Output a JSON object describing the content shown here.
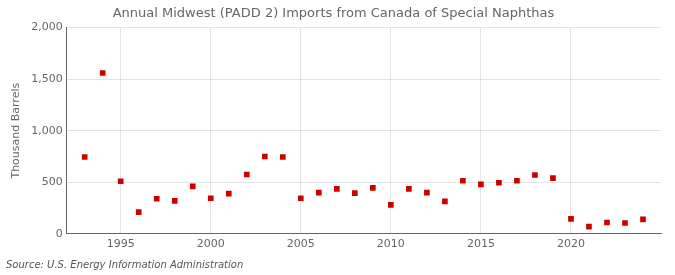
{
  "chart_data": {
    "type": "scatter",
    "title": "Annual Midwest (PADD 2) Imports from Canada of Special Naphthas",
    "ylabel": "Thousand Barrels",
    "annotation": "Source: U.S. Energy Information Administration",
    "color": "#cc0000",
    "marker": "square",
    "grid": true,
    "x": [
      1993,
      1994,
      1995,
      1996,
      1997,
      1998,
      1999,
      2000,
      2001,
      2002,
      2003,
      2004,
      2005,
      2006,
      2007,
      2008,
      2009,
      2010,
      2011,
      2012,
      2013,
      2014,
      2015,
      2016,
      2017,
      2018,
      2019,
      2020,
      2021,
      2022,
      2023,
      2024
    ],
    "values": [
      745,
      1560,
      510,
      210,
      340,
      320,
      460,
      345,
      390,
      575,
      750,
      745,
      345,
      400,
      435,
      395,
      445,
      280,
      435,
      400,
      315,
      515,
      480,
      495,
      515,
      570,
      540,
      145,
      70,
      110,
      105,
      140
    ],
    "xlim": [
      1992,
      2025
    ],
    "xticks": [
      1995,
      2000,
      2005,
      2010,
      2015,
      2020
    ],
    "ylim": [
      0,
      2000
    ],
    "yticks": [
      0,
      500,
      {
        "value": 1000,
        "label": "1,000"
      },
      {
        "value": 1500,
        "label": "1,500"
      },
      {
        "value": 2000,
        "label": "2,000"
      }
    ]
  }
}
